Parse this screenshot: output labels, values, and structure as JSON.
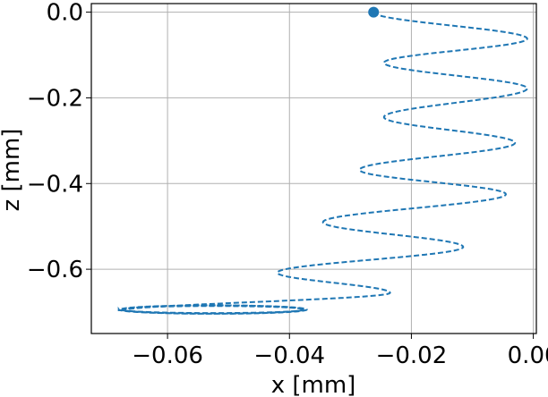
{
  "chart_data": {
    "type": "line",
    "title": "",
    "xlabel": "x [mm]",
    "ylabel": "z [mm]",
    "xlim": [
      -0.0725,
      0.0005
    ],
    "ylim": [
      -0.75,
      0.02
    ],
    "grid": true,
    "xticks": [
      -0.06,
      -0.04,
      -0.02,
      0.0
    ],
    "xtick_labels": [
      "−0.06",
      "−0.04",
      "−0.02",
      "0.00"
    ],
    "yticks": [
      0.0,
      -0.2,
      -0.4,
      -0.6
    ],
    "ytick_labels": [
      "0.0",
      "−0.2",
      "−0.4",
      "−0.6"
    ],
    "series": [
      {
        "line_style": "dashed",
        "color": "#1f77b4",
        "start_marker": {
          "x": -0.0262,
          "y": 0.0
        },
        "trajectory": {
          "center_start_x": -0.0135,
          "center_end_x": -0.0442,
          "amplitude_start": 0.0125,
          "amplitude_end": 0.0225,
          "turn_extrema": [
            {
              "x": -0.001,
              "z": -0.062
            },
            {
              "x": -0.0245,
              "z": -0.118
            },
            {
              "x": -0.001,
              "z": -0.178
            },
            {
              "x": -0.0245,
              "z": -0.245
            },
            {
              "x": -0.003,
              "z": -0.305
            },
            {
              "x": -0.0285,
              "z": -0.368
            },
            {
              "x": -0.0045,
              "z": -0.425
            },
            {
              "x": -0.0345,
              "z": -0.49
            },
            {
              "x": -0.0115,
              "z": -0.548
            },
            {
              "x": -0.042,
              "z": -0.608
            },
            {
              "x": -0.0235,
              "z": -0.655
            },
            {
              "x": -0.068,
              "z": -0.698
            }
          ],
          "final_orbit_center": {
            "x": -0.0525,
            "z": -0.694
          },
          "final_orbit_radius_x": 0.0155,
          "final_orbit_radius_z": 0.01
        }
      }
    ]
  }
}
